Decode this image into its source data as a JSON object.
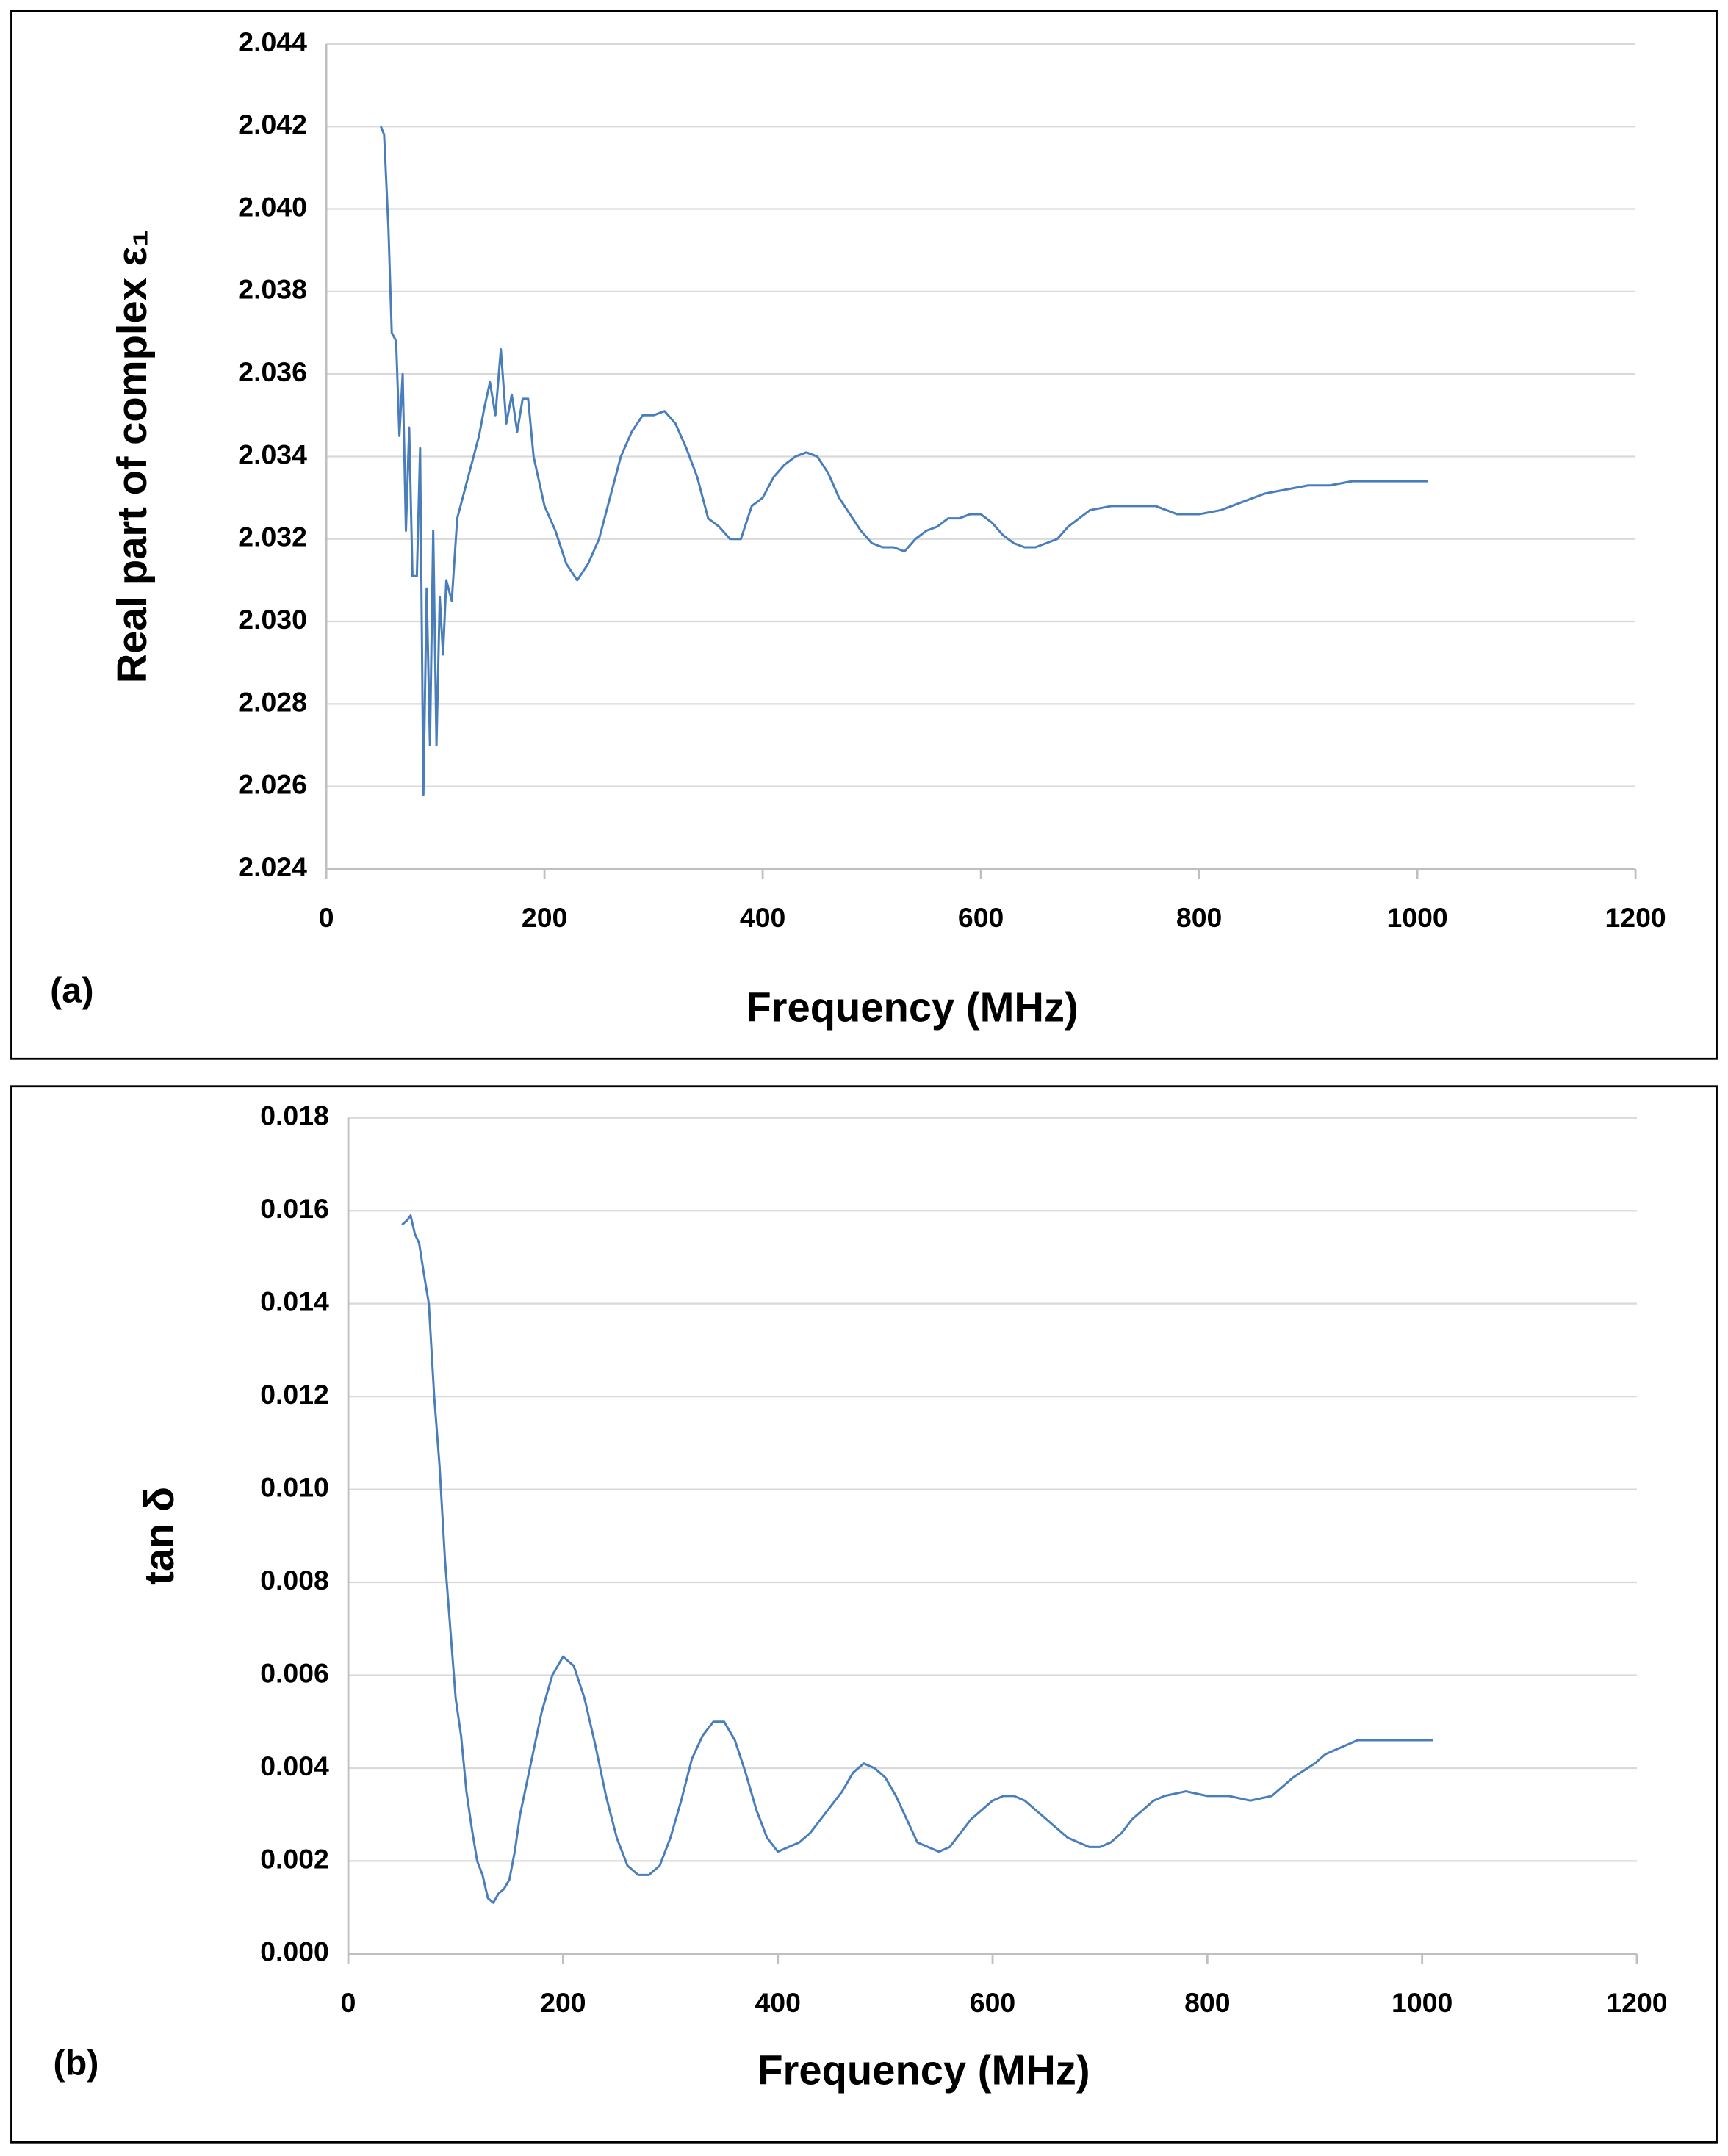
{
  "chart_data": [
    {
      "type": "line",
      "annotation": "(a)",
      "xlabel": "Frequency (MHz)",
      "ylabel": "Real part of complex ε₁",
      "color": "#4a7ebb",
      "grid": true,
      "xlim": [
        0,
        1200
      ],
      "xticks": [
        0,
        200,
        400,
        600,
        800,
        1000,
        1200
      ],
      "ylim": [
        2.024,
        2.044
      ],
      "yticks": [
        2.024,
        2.026,
        2.028,
        {
          "value": 2.03,
          "label": "2.030"
        },
        2.032,
        2.034,
        2.036,
        2.038,
        {
          "value": 2.04,
          "label": "2.040"
        },
        2.042,
        2.044
      ],
      "x": [
        50,
        53,
        57,
        60,
        64,
        67,
        70,
        73,
        76,
        79,
        83,
        86,
        89,
        92,
        95,
        98,
        101,
        104,
        107,
        110,
        115,
        120,
        130,
        140,
        145,
        150,
        155,
        160,
        165,
        170,
        175,
        180,
        185,
        190,
        200,
        210,
        220,
        230,
        240,
        250,
        260,
        270,
        280,
        290,
        300,
        310,
        320,
        330,
        340,
        350,
        360,
        370,
        380,
        390,
        400,
        410,
        420,
        430,
        440,
        450,
        460,
        470,
        480,
        490,
        500,
        510,
        520,
        530,
        540,
        550,
        560,
        570,
        580,
        590,
        600,
        610,
        620,
        630,
        640,
        650,
        660,
        670,
        680,
        690,
        700,
        720,
        740,
        760,
        780,
        800,
        820,
        840,
        860,
        880,
        900,
        920,
        940,
        960,
        1010
      ],
      "values": [
        2.042,
        2.0418,
        2.0395,
        2.037,
        2.0368,
        2.0345,
        2.036,
        2.0322,
        2.0347,
        2.0311,
        2.0311,
        2.0342,
        2.0258,
        2.0308,
        2.027,
        2.0322,
        2.027,
        2.0306,
        2.0292,
        2.031,
        2.0305,
        2.0325,
        2.0335,
        2.0345,
        2.0352,
        2.0358,
        2.035,
        2.0366,
        2.0348,
        2.0355,
        2.0346,
        2.0354,
        2.0354,
        2.034,
        2.0328,
        2.0322,
        2.0314,
        2.031,
        2.0314,
        2.032,
        2.033,
        2.034,
        2.0346,
        2.035,
        2.035,
        2.0351,
        2.0348,
        2.0342,
        2.0335,
        2.0325,
        2.0323,
        2.032,
        2.032,
        2.0328,
        2.033,
        2.0335,
        2.0338,
        2.034,
        2.0341,
        2.034,
        2.0336,
        2.033,
        2.0326,
        2.0322,
        2.0319,
        2.0318,
        2.0318,
        2.0317,
        2.032,
        2.0322,
        2.0323,
        2.0325,
        2.0325,
        2.0326,
        2.0326,
        2.0324,
        2.0321,
        2.0319,
        2.0318,
        2.0318,
        2.0319,
        2.032,
        2.0323,
        2.0325,
        2.0327,
        2.0328,
        2.0328,
        2.0328,
        2.0326,
        2.0326,
        2.0327,
        2.0329,
        2.0331,
        2.0332,
        2.0333,
        2.0333,
        2.0334,
        2.0334,
        2.0334
      ]
    },
    {
      "type": "line",
      "annotation": "(b)",
      "xlabel": "Frequency (MHz)",
      "ylabel": "tan δ",
      "color": "#4a7ebb",
      "grid": true,
      "xlim": [
        0,
        1200
      ],
      "xticks": [
        0,
        200,
        400,
        600,
        800,
        1000,
        1200
      ],
      "ylim": [
        0,
        0.018
      ],
      "yticks": [
        {
          "value": 0,
          "label": "0.000"
        },
        0.002,
        0.004,
        0.006,
        0.008,
        {
          "value": 0.01,
          "label": "0.010"
        },
        0.012,
        0.014,
        0.016,
        0.018
      ],
      "x": [
        50,
        55,
        58,
        62,
        66,
        70,
        75,
        80,
        85,
        90,
        95,
        100,
        105,
        110,
        115,
        120,
        125,
        130,
        135,
        140,
        145,
        150,
        155,
        160,
        170,
        180,
        190,
        200,
        210,
        220,
        230,
        240,
        250,
        260,
        270,
        280,
        290,
        300,
        310,
        320,
        330,
        340,
        350,
        360,
        370,
        380,
        390,
        400,
        410,
        420,
        430,
        440,
        450,
        460,
        470,
        480,
        490,
        500,
        510,
        520,
        530,
        540,
        550,
        560,
        570,
        580,
        590,
        600,
        610,
        620,
        630,
        640,
        650,
        660,
        670,
        680,
        690,
        700,
        710,
        720,
        730,
        740,
        750,
        760,
        780,
        800,
        820,
        840,
        860,
        870,
        880,
        900,
        910,
        920,
        940,
        960,
        1010
      ],
      "values": [
        0.0157,
        0.0158,
        0.0159,
        0.0155,
        0.0153,
        0.0147,
        0.014,
        0.012,
        0.0105,
        0.0085,
        0.007,
        0.0055,
        0.0047,
        0.0035,
        0.0027,
        0.002,
        0.0017,
        0.0012,
        0.0011,
        0.0013,
        0.0014,
        0.0016,
        0.0022,
        0.003,
        0.0041,
        0.0052,
        0.006,
        0.0064,
        0.0062,
        0.0055,
        0.0045,
        0.0034,
        0.0025,
        0.0019,
        0.0017,
        0.0017,
        0.0019,
        0.0025,
        0.0033,
        0.0042,
        0.0047,
        0.005,
        0.005,
        0.0046,
        0.0039,
        0.0031,
        0.0025,
        0.0022,
        0.0023,
        0.0024,
        0.0026,
        0.0029,
        0.0032,
        0.0035,
        0.0039,
        0.0041,
        0.004,
        0.0038,
        0.0034,
        0.0029,
        0.0024,
        0.0023,
        0.0022,
        0.0023,
        0.0026,
        0.0029,
        0.0031,
        0.0033,
        0.0034,
        0.0034,
        0.0033,
        0.0031,
        0.0029,
        0.0027,
        0.0025,
        0.0024,
        0.0023,
        0.0023,
        0.0024,
        0.0026,
        0.0029,
        0.0031,
        0.0033,
        0.0034,
        0.0035,
        0.0034,
        0.0034,
        0.0033,
        0.0034,
        0.0036,
        0.0038,
        0.0041,
        0.0043,
        0.0044,
        0.0046,
        0.0046,
        0.0046
      ]
    }
  ]
}
